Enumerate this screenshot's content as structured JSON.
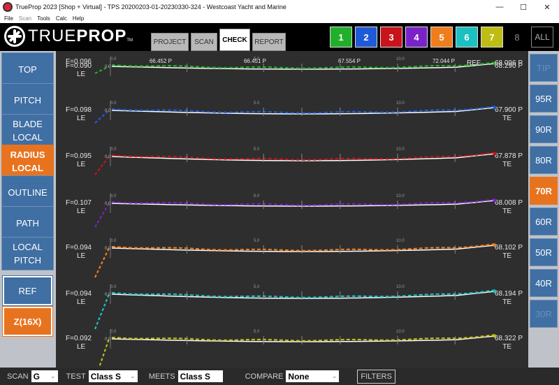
{
  "window": {
    "title": "TrueProp 2023 [Shop + Virtual] - TPS 20200203-01-20230330-324 - Westcoast Yacht and Marine",
    "minimize": "—",
    "maximize": "☐",
    "close": "✕"
  },
  "menu": [
    "File",
    "Scan",
    "Tools",
    "Calc",
    "Help"
  ],
  "logo": {
    "true": "TRUE",
    "prop": "PROP",
    "tm": "TM"
  },
  "tabs": [
    {
      "label": "PROJECT"
    },
    {
      "label": "SCAN"
    },
    {
      "label": "CHECK"
    },
    {
      "label": "REPORT"
    }
  ],
  "blades": [
    {
      "label": "1",
      "color": "#22b02c"
    },
    {
      "label": "2",
      "color": "#1f5bd8"
    },
    {
      "label": "3",
      "color": "#c8131b"
    },
    {
      "label": "4",
      "color": "#7a22c8"
    },
    {
      "label": "5",
      "color": "#f07d1c"
    },
    {
      "label": "6",
      "color": "#1cc0c0"
    },
    {
      "label": "7",
      "color": "#bdbd14"
    },
    {
      "label": "8",
      "color": "#000000"
    },
    {
      "label": "ALL",
      "color": "#000000"
    }
  ],
  "left_menu": [
    {
      "label": "TOP"
    },
    {
      "label": "PITCH"
    },
    {
      "label": "BLADE LOCAL"
    },
    {
      "label": "RADIUS LOCAL"
    },
    {
      "label": "OUTLINE"
    },
    {
      "label": "PATH"
    },
    {
      "label": "LOCAL PITCH"
    },
    {
      "label": "REF"
    },
    {
      "label": "Z(16X)"
    }
  ],
  "right_menu": [
    {
      "label": "TIP"
    },
    {
      "label": "95R"
    },
    {
      "label": "90R"
    },
    {
      "label": "80R"
    },
    {
      "label": "70R"
    },
    {
      "label": "60R"
    },
    {
      "label": "50R"
    },
    {
      "label": "40R"
    },
    {
      "label": "30R"
    }
  ],
  "plot": {
    "rows": [
      {
        "f_label": "F=0.090",
        "f_label2": "F=0.096",
        "le": "LE",
        "p_label": "68.290 P",
        "p_label2": "68.096 P",
        "end_label": "REF",
        "color": "#22b02c",
        "top_labels": [
          "66.452 P",
          "66.451 P",
          "67.554 P",
          "72.044 P"
        ]
      },
      {
        "f_label": "F=0.098",
        "le": "LE",
        "p_label": "67.900 P",
        "te": "TE",
        "color": "#1f5bd8"
      },
      {
        "f_label": "F=0.095",
        "le": "LE",
        "p_label": "67.878 P",
        "te": "TE",
        "color": "#c8131b"
      },
      {
        "f_label": "F=0.107",
        "le": "LE",
        "p_label": "68.008 P",
        "te": "TE",
        "color": "#7a22c8"
      },
      {
        "f_label": "F=0.094",
        "le": "LE",
        "p_label": "68.102 P",
        "te": "TE",
        "color": "#f07d1c"
      },
      {
        "f_label": "F=0.094",
        "le": "LE",
        "p_label": "68.194 P",
        "te": "TE",
        "color": "#1cc0c0"
      },
      {
        "f_label": "F=0.092",
        "le": "LE",
        "p_label": "68.322 P",
        "te": "TE",
        "color": "#bdbd14"
      }
    ],
    "scale_labels": [
      "0.0",
      "5.0",
      "10.0"
    ]
  },
  "status": {
    "scan_label": "SCAN",
    "scan_value": "G",
    "test_label": "TEST",
    "test_value": "Class S",
    "meets_label": "MEETS",
    "meets_value": "Class S",
    "compare_label": "COMPARE",
    "compare_value": "None",
    "filters_label": "FILTERS"
  }
}
